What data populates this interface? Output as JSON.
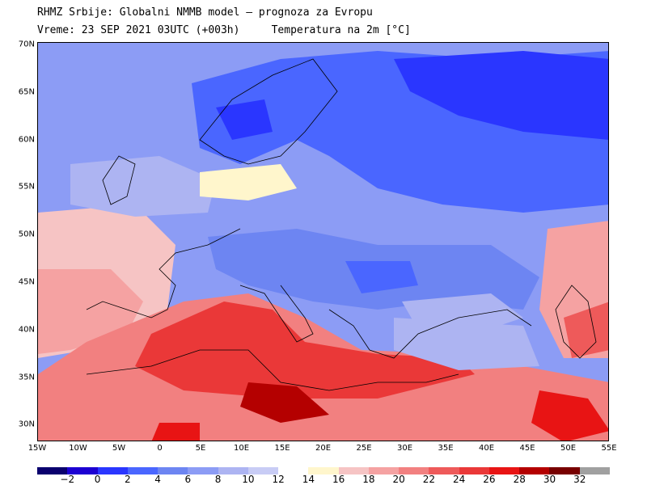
{
  "header": {
    "line1": "RHMZ Srbije: Globalni NMMB model — prognoza za Evropu",
    "line2": "Vreme: 23 SEP 2021 03UTC (+003h)     Temperatura na 2m [°C]"
  },
  "map": {
    "lat_labels": [
      "70N",
      "65N",
      "60N",
      "55N",
      "50N",
      "45N",
      "40N",
      "35N",
      "30N"
    ],
    "lon_labels": [
      "15W",
      "10W",
      "5W",
      "0",
      "5E",
      "10E",
      "15E",
      "20E",
      "25E",
      "30E",
      "35E",
      "40E",
      "45E",
      "50E",
      "55E"
    ]
  },
  "colorbar": {
    "colors": [
      "#0a006e",
      "#1c00d2",
      "#2a36ff",
      "#4a66ff",
      "#6d85f2",
      "#8c9cf5",
      "#adb4f2",
      "#c8ccf5",
      "#ffffff",
      "#fff6cc",
      "#f6c4c4",
      "#f5a2a2",
      "#f28080",
      "#ee5a5a",
      "#ea3838",
      "#e81414",
      "#b40000",
      "#780000",
      "#a0a0a0"
    ],
    "labels": [
      "-2",
      "0",
      "2",
      "4",
      "6",
      "8",
      "10",
      "12",
      "14",
      "16",
      "18",
      "20",
      "22",
      "24",
      "26",
      "28",
      "30",
      "32"
    ]
  }
}
